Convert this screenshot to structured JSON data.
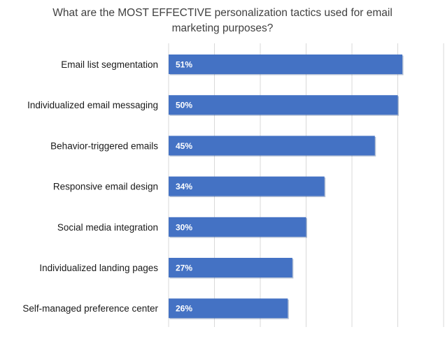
{
  "chart_data": {
    "type": "bar",
    "orientation": "horizontal",
    "title_lines": [
      "What are the MOST EFFECTIVE personalization tactics used for email",
      "marketing purposes?"
    ],
    "categories": [
      "Email list segmentation",
      "Individualized email messaging",
      "Behavior-triggered emails",
      "Responsive email design",
      "Social media integration",
      "Individualized landing pages",
      "Self-managed preference center"
    ],
    "values": [
      51,
      50,
      45,
      34,
      30,
      27,
      26
    ],
    "value_labels": [
      "51%",
      "50%",
      "45%",
      "34%",
      "30%",
      "27%",
      "26%"
    ],
    "xlim": [
      0,
      60
    ],
    "grid": true,
    "bar_color": "#4472c4",
    "gridline_color": "#d9d9d9"
  }
}
